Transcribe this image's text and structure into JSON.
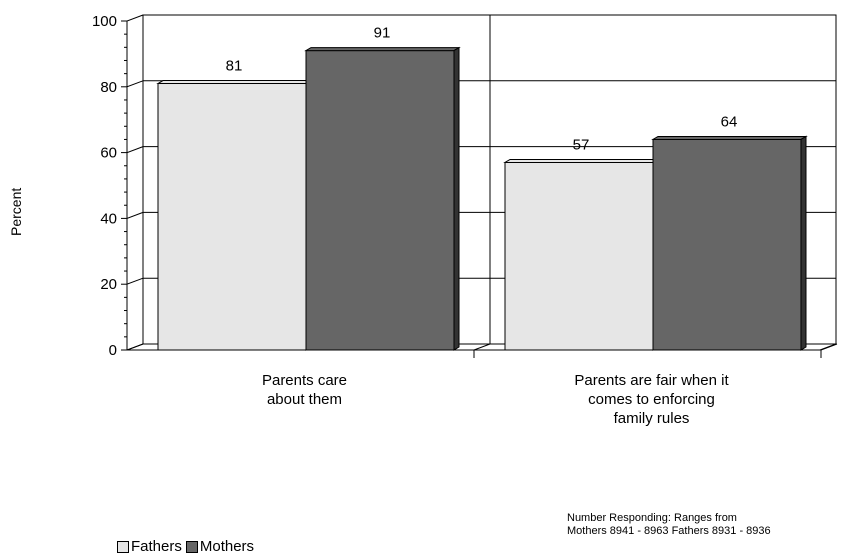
{
  "chart_data": {
    "type": "bar",
    "ylabel": "Percent",
    "ylim": [
      0,
      100
    ],
    "yticks": [
      0,
      20,
      40,
      60,
      80,
      100
    ],
    "categories": [
      [
        "Parents care",
        "about them"
      ],
      [
        "Parents are fair when it",
        "comes to enforcing",
        "family rules"
      ]
    ],
    "series": [
      {
        "name": "Fathers",
        "values": [
          81,
          57
        ],
        "color": "#e6e6e6"
      },
      {
        "name": "Mothers",
        "values": [
          91,
          64
        ],
        "color": "#666666"
      }
    ],
    "grid": "horizontal",
    "legend_placement": "bottom-left",
    "note": [
      "Number Responding: Ranges from",
      "Mothers 8941 - 8963   Fathers 8931 - 8936"
    ]
  }
}
